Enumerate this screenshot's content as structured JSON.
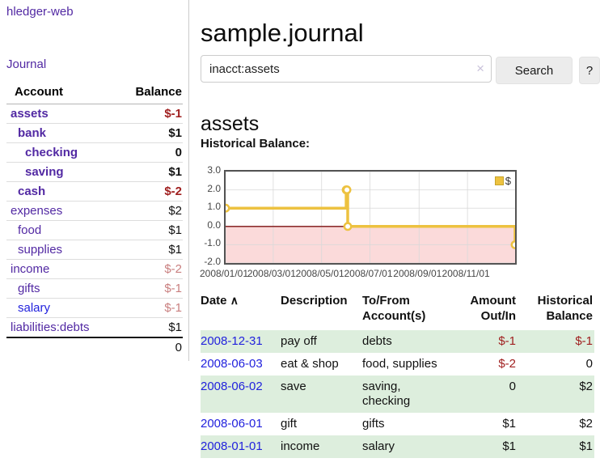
{
  "app_title": "hledger-web",
  "sidebar": {
    "journal_label": "Journal",
    "accounts": {
      "col_account": "Account",
      "col_balance": "Balance",
      "rows": [
        {
          "name": "assets",
          "balance": "$-1",
          "depth": 1,
          "bold": true
        },
        {
          "name": "bank",
          "balance": "$1",
          "depth": 2,
          "bold": true
        },
        {
          "name": "checking",
          "balance": "0",
          "depth": 3,
          "bold": true
        },
        {
          "name": "saving",
          "balance": "$1",
          "depth": 3,
          "bold": true
        },
        {
          "name": "cash",
          "balance": "$-2",
          "depth": 2,
          "bold": true
        },
        {
          "name": "expenses",
          "balance": "$2",
          "depth": 1,
          "bold": false
        },
        {
          "name": "food",
          "balance": "$1",
          "depth": 2,
          "bold": false
        },
        {
          "name": "supplies",
          "balance": "$1",
          "depth": 2,
          "bold": false
        },
        {
          "name": "income",
          "balance": "$-2",
          "depth": 1,
          "bold": false
        },
        {
          "name": "gifts",
          "balance": "$-1",
          "depth": 2,
          "bold": false
        },
        {
          "name": "salary",
          "balance": "$-1",
          "depth": 2,
          "bold": false,
          "blue": true
        },
        {
          "name": "liabilities:debts",
          "balance": "$1",
          "depth": 1,
          "bold": false
        }
      ],
      "total": "0"
    }
  },
  "main": {
    "title": "sample.journal",
    "search": {
      "value": "inacct:assets",
      "clear_icon": "×",
      "search_label": "Search",
      "help_label": "?"
    },
    "heading": "assets",
    "chart_label": "Historical Balance:"
  },
  "chart_data": {
    "type": "line",
    "title": "Historical Balance",
    "series": [
      {
        "name": "$",
        "color": "#edc240",
        "points": [
          [
            "2008-01-01",
            1
          ],
          [
            "2008-06-01",
            2
          ],
          [
            "2008-06-02",
            2
          ],
          [
            "2008-06-03",
            0
          ],
          [
            "2008-12-31",
            -1
          ]
        ]
      }
    ],
    "step": true,
    "x_range": [
      "2008-01-01",
      "2008-12-31"
    ],
    "ylim": [
      -2,
      3
    ],
    "y_ticks": [
      "3.0",
      "2.0",
      "1.0",
      "0.0",
      "-1.0",
      "-2.0"
    ],
    "x_ticks": [
      "2008/01/01",
      "2008/03/01",
      "2008/05/01",
      "2008/07/01",
      "2008/09/01",
      "2008/11/01"
    ],
    "grid": true,
    "negative_fill": "#fbdada",
    "zero_line_color": "#7c1010",
    "legend": {
      "label": "$",
      "position": "top-right"
    }
  },
  "register": {
    "columns": {
      "date": "Date",
      "sort_icon": "∧",
      "description": "Description",
      "accounts": [
        "To/From",
        "Account(s)"
      ],
      "amount": [
        "Amount",
        "Out/In"
      ],
      "balance": [
        "Historical",
        "Balance"
      ]
    },
    "rows": [
      {
        "date": "2008-12-31",
        "description": "pay off",
        "accounts": [
          "debts"
        ],
        "amount": "$-1",
        "balance": "$-1"
      },
      {
        "date": "2008-06-03",
        "description": "eat & shop",
        "accounts": [
          "food, supplies"
        ],
        "amount": "$-2",
        "balance": "0"
      },
      {
        "date": "2008-06-02",
        "description": "save",
        "accounts": [
          "saving,",
          "checking"
        ],
        "amount": "0",
        "balance": "$2"
      },
      {
        "date": "2008-06-01",
        "description": "gift",
        "accounts": [
          "gifts"
        ],
        "amount": "$1",
        "balance": "$2"
      },
      {
        "date": "2008-01-01",
        "description": "income",
        "accounts": [
          "salary"
        ],
        "amount": "$1",
        "balance": "$1"
      }
    ]
  },
  "colors": {
    "purple": "#5229a3",
    "blue": "#2222dd",
    "negative": "#a02020",
    "negative_muted": "#c97f7f",
    "stripe": "#ddeedd",
    "chart_yellow": "#edc240"
  }
}
